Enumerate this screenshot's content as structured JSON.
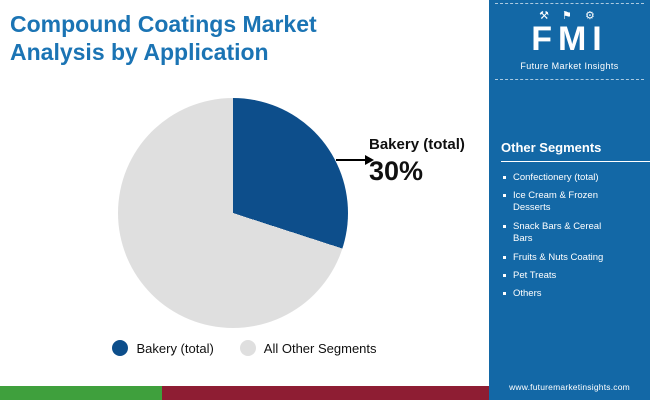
{
  "colors": {
    "accent_blue": "#1b74b4",
    "sidebar_blue": "#1368a6",
    "pie_blue": "#0d4e8b",
    "pie_gray": "#dfdfdf",
    "strip_green": "#3fa03d",
    "strip_maroon": "#8e1d33"
  },
  "header": {
    "title": "Compound Coatings Market Analysis by Application"
  },
  "chart_data": {
    "type": "pie",
    "title": "Compound Coatings Market Analysis by Application",
    "slices": [
      {
        "label": "Bakery (total)",
        "value": 30,
        "color": "#0d4e8b"
      },
      {
        "label": "All Other Segments",
        "value": 70,
        "color": "#dfdfdf"
      }
    ],
    "callout": {
      "label": "Bakery (total)",
      "value_text": "30%"
    },
    "legend_position": "bottom"
  },
  "brand": {
    "icons": "⚒ ⚑ ⚙",
    "name": "FMI",
    "tagline": "Future Market Insights"
  },
  "sidebar": {
    "heading": "Other Segments",
    "items": [
      "Confectionery (total)",
      "Ice Cream & Frozen Desserts",
      "Snack Bars & Cereal Bars",
      "Fruits & Nuts Coating",
      "Pet Treats",
      "Others"
    ],
    "url": "www.futuremarketinsights.com"
  }
}
